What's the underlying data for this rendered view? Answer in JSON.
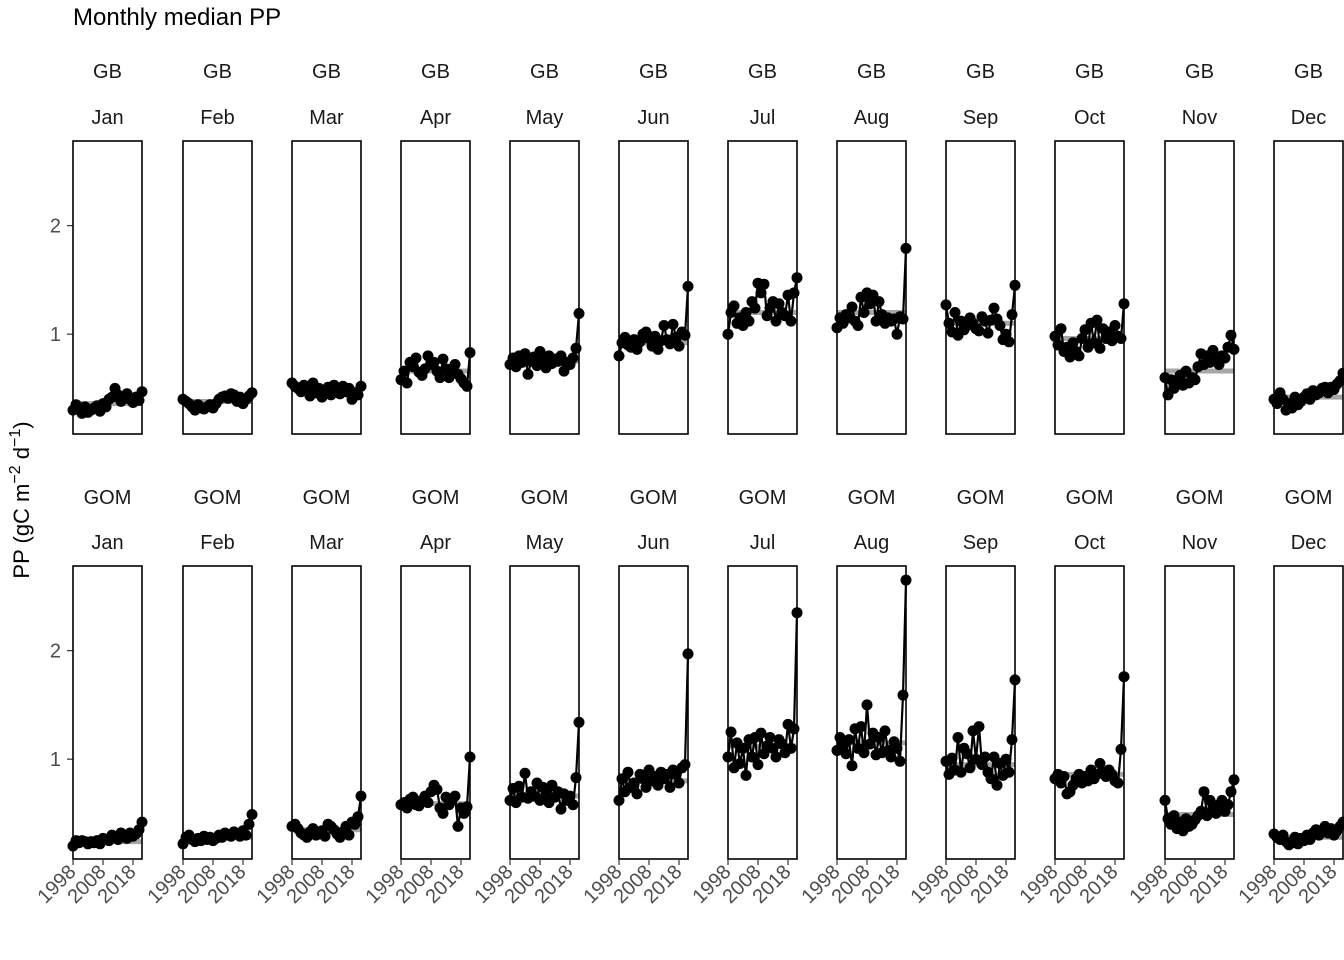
{
  "chart_data": {
    "type": "line",
    "title": "Monthly median PP",
    "ylabel": "PP (gC m−2 d−1)",
    "ylabel_parts": {
      "base": "PP (gC m",
      "exp1": "−2",
      "mid": " d",
      "exp2": "−1",
      "end": ")"
    },
    "xlabel": "",
    "xlim": [
      1998,
      2021
    ],
    "ylim": [
      0.08,
      2.78
    ],
    "yticks": [
      1,
      2
    ],
    "xticks": [
      1998,
      2008,
      2018
    ],
    "x": [
      1998,
      1999,
      2000,
      2001,
      2002,
      2003,
      2004,
      2005,
      2006,
      2007,
      2008,
      2009,
      2010,
      2011,
      2012,
      2013,
      2014,
      2015,
      2016,
      2017,
      2018,
      2019,
      2020,
      2021
    ],
    "facet_rows": [
      "GB",
      "GOM"
    ],
    "facet_cols": [
      "Jan",
      "Feb",
      "Mar",
      "Apr",
      "May",
      "Jun",
      "Jul",
      "Aug",
      "Sep",
      "Oct",
      "Nov",
      "Dec"
    ],
    "series": [
      {
        "region": "GB",
        "month": "Jan",
        "mean": 0.36,
        "values": [
          0.3,
          0.35,
          0.31,
          0.27,
          0.33,
          0.28,
          0.3,
          0.32,
          0.34,
          0.29,
          0.36,
          0.33,
          0.4,
          0.42,
          0.5,
          0.44,
          0.38,
          0.41,
          0.45,
          0.4,
          0.37,
          0.42,
          0.39,
          0.47
        ]
      },
      {
        "region": "GB",
        "month": "Feb",
        "mean": 0.38,
        "values": [
          0.4,
          0.38,
          0.36,
          0.33,
          0.3,
          0.35,
          0.32,
          0.31,
          0.33,
          0.35,
          0.32,
          0.36,
          0.4,
          0.42,
          0.43,
          0.41,
          0.45,
          0.44,
          0.38,
          0.42,
          0.36,
          0.4,
          0.43,
          0.46
        ]
      },
      {
        "region": "GB",
        "month": "Mar",
        "mean": 0.49,
        "values": [
          0.55,
          0.52,
          0.5,
          0.47,
          0.53,
          0.48,
          0.43,
          0.55,
          0.46,
          0.5,
          0.42,
          0.45,
          0.51,
          0.44,
          0.53,
          0.49,
          0.45,
          0.52,
          0.47,
          0.5,
          0.4,
          0.46,
          0.44,
          0.52
        ]
      },
      {
        "region": "GB",
        "month": "Apr",
        "mean": 0.66,
        "values": [
          0.58,
          0.66,
          0.55,
          0.74,
          0.7,
          0.78,
          0.65,
          0.62,
          0.68,
          0.8,
          0.72,
          0.74,
          0.66,
          0.6,
          0.77,
          0.68,
          0.6,
          0.68,
          0.72,
          0.63,
          0.59,
          0.55,
          0.52,
          0.83
        ]
      },
      {
        "region": "GB",
        "month": "May",
        "mean": 0.75,
        "values": [
          0.72,
          0.78,
          0.7,
          0.8,
          0.74,
          0.82,
          0.63,
          0.75,
          0.79,
          0.71,
          0.84,
          0.76,
          0.69,
          0.8,
          0.73,
          0.77,
          0.75,
          0.8,
          0.66,
          0.74,
          0.72,
          0.78,
          0.87,
          1.19
        ]
      },
      {
        "region": "GB",
        "month": "Jun",
        "mean": 0.92,
        "values": [
          0.8,
          0.92,
          0.97,
          0.9,
          0.88,
          0.95,
          0.86,
          0.93,
          1.0,
          1.02,
          0.96,
          0.89,
          0.98,
          0.86,
          0.94,
          1.08,
          0.95,
          0.91,
          1.09,
          0.97,
          0.89,
          1.02,
          0.99,
          1.44
        ]
      },
      {
        "region": "GB",
        "month": "Jul",
        "mean": 1.2,
        "values": [
          1.0,
          1.2,
          1.26,
          1.1,
          1.15,
          1.08,
          1.2,
          1.12,
          1.3,
          1.24,
          1.47,
          1.38,
          1.46,
          1.17,
          1.24,
          1.3,
          1.12,
          1.28,
          1.2,
          1.17,
          1.36,
          1.12,
          1.38,
          1.52
        ]
      },
      {
        "region": "GB",
        "month": "Aug",
        "mean": 1.2,
        "values": [
          1.06,
          1.15,
          1.1,
          1.18,
          1.15,
          1.25,
          1.12,
          1.08,
          1.34,
          1.2,
          1.38,
          1.28,
          1.36,
          1.12,
          1.3,
          1.18,
          1.1,
          1.15,
          1.12,
          1.14,
          1.0,
          1.16,
          1.14,
          1.79
        ]
      },
      {
        "region": "GB",
        "month": "Sep",
        "mean": 1.1,
        "values": [
          1.27,
          1.1,
          1.02,
          1.2,
          0.99,
          1.12,
          1.04,
          1.08,
          1.15,
          1.1,
          1.05,
          1.03,
          1.16,
          1.12,
          1.01,
          1.13,
          1.24,
          1.14,
          1.08,
          0.95,
          1.0,
          0.93,
          1.18,
          1.45
        ]
      },
      {
        "region": "GB",
        "month": "Oct",
        "mean": 0.96,
        "values": [
          0.98,
          0.9,
          1.05,
          0.84,
          0.88,
          0.79,
          0.92,
          0.84,
          0.8,
          0.96,
          1.04,
          0.88,
          1.1,
          0.92,
          1.13,
          0.87,
          1.05,
          0.96,
          1.02,
          0.94,
          1.08,
          0.98,
          0.96,
          1.28
        ]
      },
      {
        "region": "GB",
        "month": "Nov",
        "mean": 0.66,
        "values": [
          0.6,
          0.44,
          0.58,
          0.5,
          0.56,
          0.62,
          0.53,
          0.66,
          0.55,
          0.6,
          0.58,
          0.7,
          0.82,
          0.72,
          0.8,
          0.74,
          0.85,
          0.76,
          0.72,
          0.8,
          0.78,
          0.88,
          0.99,
          0.86
        ]
      },
      {
        "region": "GB",
        "month": "Dec",
        "mean": 0.42,
        "values": [
          0.4,
          0.36,
          0.46,
          0.4,
          0.3,
          0.36,
          0.32,
          0.42,
          0.35,
          0.38,
          0.42,
          0.45,
          0.4,
          0.48,
          0.44,
          0.46,
          0.5,
          0.51,
          0.46,
          0.51,
          0.49,
          0.54,
          0.57,
          0.64
        ]
      },
      {
        "region": "GOM",
        "month": "Jan",
        "mean": 0.24,
        "values": [
          0.2,
          0.25,
          0.23,
          0.25,
          0.24,
          0.22,
          0.24,
          0.23,
          0.25,
          0.22,
          0.27,
          0.26,
          0.25,
          0.3,
          0.28,
          0.26,
          0.32,
          0.3,
          0.27,
          0.32,
          0.29,
          0.31,
          0.35,
          0.42
        ]
      },
      {
        "region": "GOM",
        "month": "Feb",
        "mean": 0.28,
        "values": [
          0.22,
          0.28,
          0.3,
          0.26,
          0.24,
          0.27,
          0.25,
          0.29,
          0.26,
          0.28,
          0.25,
          0.27,
          0.3,
          0.28,
          0.32,
          0.3,
          0.29,
          0.33,
          0.31,
          0.29,
          0.34,
          0.3,
          0.4,
          0.49
        ]
      },
      {
        "region": "GOM",
        "month": "Mar",
        "mean": 0.35,
        "values": [
          0.38,
          0.4,
          0.36,
          0.32,
          0.3,
          0.28,
          0.33,
          0.36,
          0.3,
          0.31,
          0.34,
          0.29,
          0.4,
          0.38,
          0.35,
          0.31,
          0.28,
          0.33,
          0.38,
          0.3,
          0.42,
          0.4,
          0.47,
          0.66
        ]
      },
      {
        "region": "GOM",
        "month": "Apr",
        "mean": 0.59,
        "values": [
          0.58,
          0.6,
          0.55,
          0.63,
          0.65,
          0.58,
          0.57,
          0.62,
          0.66,
          0.6,
          0.7,
          0.76,
          0.72,
          0.55,
          0.5,
          0.65,
          0.58,
          0.62,
          0.66,
          0.38,
          0.55,
          0.5,
          0.56,
          1.02
        ]
      },
      {
        "region": "GOM",
        "month": "May",
        "mean": 0.66,
        "values": [
          0.62,
          0.73,
          0.6,
          0.75,
          0.65,
          0.87,
          0.64,
          0.7,
          0.66,
          0.78,
          0.62,
          0.74,
          0.68,
          0.6,
          0.76,
          0.65,
          0.7,
          0.54,
          0.68,
          0.62,
          0.66,
          0.58,
          0.83,
          1.34
        ]
      },
      {
        "region": "GOM",
        "month": "Jun",
        "mean": 0.8,
        "values": [
          0.62,
          0.82,
          0.7,
          0.88,
          0.74,
          0.78,
          0.68,
          0.86,
          0.82,
          0.74,
          0.9,
          0.8,
          0.84,
          0.76,
          0.88,
          0.82,
          0.86,
          0.74,
          0.9,
          0.86,
          0.78,
          0.92,
          0.95,
          1.97
        ]
      },
      {
        "region": "GOM",
        "month": "Jul",
        "mean": 1.12,
        "values": [
          1.02,
          1.25,
          0.92,
          1.15,
          0.96,
          1.1,
          0.85,
          1.18,
          1.02,
          1.2,
          0.95,
          1.24,
          1.05,
          1.12,
          1.2,
          1.1,
          1.02,
          1.18,
          1.14,
          1.06,
          1.32,
          1.1,
          1.28,
          2.35
        ]
      },
      {
        "region": "GOM",
        "month": "Aug",
        "mean": 1.15,
        "values": [
          1.08,
          1.2,
          1.12,
          1.05,
          1.18,
          0.94,
          1.28,
          1.1,
          1.3,
          1.06,
          1.5,
          1.14,
          1.24,
          1.04,
          1.2,
          1.06,
          1.26,
          1.08,
          1.02,
          1.16,
          1.1,
          0.98,
          1.59,
          2.65
        ]
      },
      {
        "region": "GOM",
        "month": "Sep",
        "mean": 0.95,
        "values": [
          0.98,
          0.86,
          1.01,
          0.9,
          1.2,
          0.88,
          1.1,
          1.05,
          0.92,
          1.26,
          1.0,
          1.3,
          0.95,
          1.02,
          0.88,
          0.82,
          1.02,
          0.76,
          0.96,
          0.85,
          1.0,
          0.88,
          1.18,
          1.73
        ]
      },
      {
        "region": "GOM",
        "month": "Oct",
        "mean": 0.86,
        "values": [
          0.82,
          0.86,
          0.78,
          0.84,
          0.68,
          0.7,
          0.76,
          0.82,
          0.86,
          0.78,
          0.84,
          0.8,
          0.9,
          0.82,
          0.86,
          0.96,
          0.88,
          0.84,
          0.9,
          0.86,
          0.8,
          0.78,
          1.09,
          1.76
        ]
      },
      {
        "region": "GOM",
        "month": "Nov",
        "mean": 0.49,
        "values": [
          0.62,
          0.45,
          0.4,
          0.48,
          0.36,
          0.42,
          0.34,
          0.45,
          0.38,
          0.4,
          0.44,
          0.48,
          0.52,
          0.7,
          0.48,
          0.62,
          0.56,
          0.5,
          0.58,
          0.62,
          0.52,
          0.58,
          0.7,
          0.81
        ]
      },
      {
        "region": "GOM",
        "month": "Dec",
        "mean": 0.28,
        "values": [
          0.31,
          0.28,
          0.26,
          0.3,
          0.24,
          0.21,
          0.23,
          0.28,
          0.22,
          0.27,
          0.25,
          0.3,
          0.26,
          0.32,
          0.35,
          0.3,
          0.33,
          0.38,
          0.32,
          0.36,
          0.3,
          0.34,
          0.38,
          0.42
        ]
      }
    ]
  }
}
